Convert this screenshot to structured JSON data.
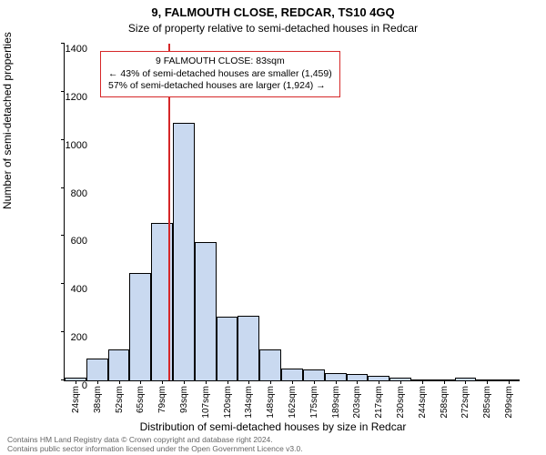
{
  "titles": {
    "main": "9, FALMOUTH CLOSE, REDCAR, TS10 4GQ",
    "sub": "Size of property relative to semi-detached houses in Redcar"
  },
  "axes": {
    "ylabel": "Number of semi-detached properties",
    "xlabel": "Distribution of semi-detached houses by size in Redcar",
    "ylim": [
      0,
      1400
    ],
    "ytick_step": 200,
    "yticks": [
      0,
      200,
      400,
      600,
      800,
      1000,
      1200,
      1400
    ],
    "xticks": [
      "24sqm",
      "38sqm",
      "52sqm",
      "65sqm",
      "79sqm",
      "93sqm",
      "107sqm",
      "120sqm",
      "134sqm",
      "148sqm",
      "162sqm",
      "175sqm",
      "189sqm",
      "203sqm",
      "217sqm",
      "230sqm",
      "244sqm",
      "258sqm",
      "272sqm",
      "285sqm",
      "299sqm"
    ],
    "tick_fontsize": 11,
    "label_fontsize": 12
  },
  "chart": {
    "type": "histogram",
    "bar_color": "#c9d9f0",
    "bar_border_color": "#000000",
    "bar_border_width": 0.5,
    "values": [
      12,
      92,
      130,
      445,
      655,
      1070,
      575,
      265,
      270,
      130,
      50,
      45,
      30,
      25,
      20,
      10,
      5,
      0,
      10,
      0,
      0
    ],
    "vline": {
      "position_sqm": 83,
      "color": "#d62728",
      "width": 2
    }
  },
  "annotation": {
    "border_color": "#d62728",
    "lines": [
      "9 FALMOUTH CLOSE: 83sqm",
      "← 43% of semi-detached houses are smaller (1,459)",
      "57% of semi-detached houses are larger (1,924) →"
    ]
  },
  "footer": {
    "line1": "Contains HM Land Registry data © Crown copyright and database right 2024.",
    "line2": "Contains public sector information licensed under the Open Government Licence v3.0."
  },
  "colors": {
    "background": "#ffffff",
    "text": "#000000",
    "footer_text": "#666666"
  }
}
